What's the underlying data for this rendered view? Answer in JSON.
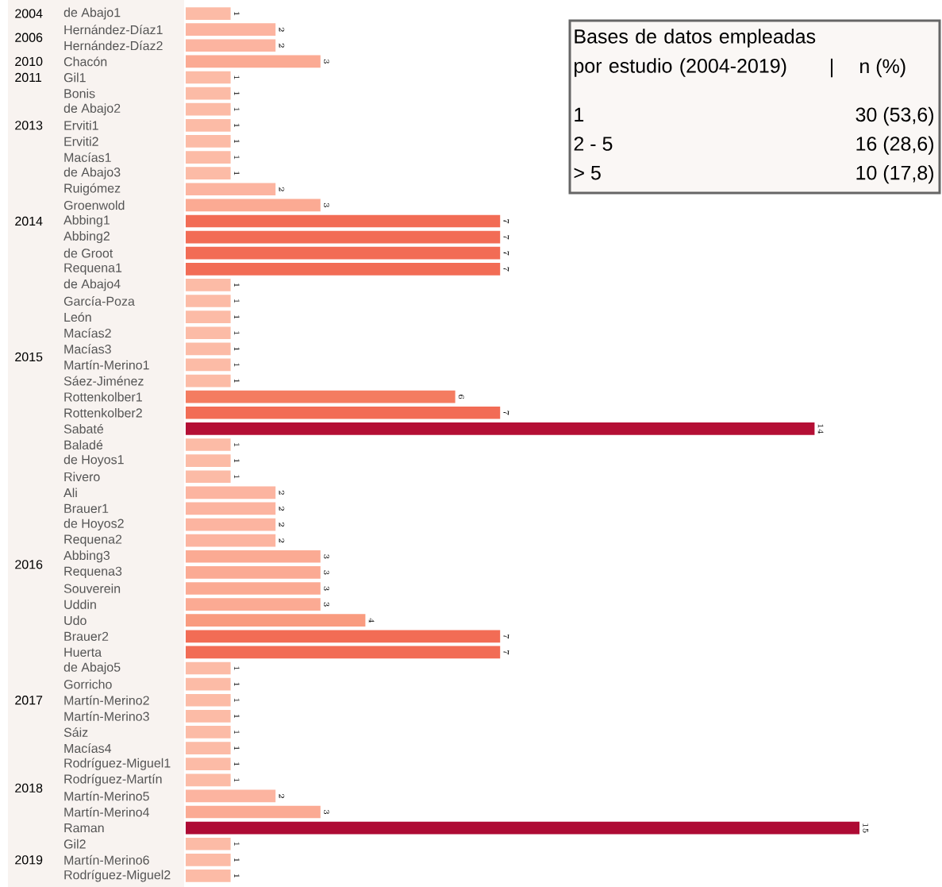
{
  "chart_data": {
    "type": "bar",
    "orientation": "horizontal",
    "data_labels": true,
    "categories": [
      "de Abajo1",
      "Hernández-Díaz1",
      "Hernández-Díaz2",
      "Chacón",
      "Gil1",
      "Bonis",
      "de Abajo2",
      "Erviti1",
      "Erviti2",
      "Macías1",
      "de Abajo3",
      "Ruigómez",
      "Groenwold",
      "Abbing1",
      "Abbing2",
      "de Groot",
      "Requena1",
      "de Abajo4",
      "García-Poza",
      "León",
      "Macías2",
      "Macías3",
      "Martín-Merino1",
      "Sáez-Jiménez",
      "Rottenkolber1",
      "Rottenkolber2",
      "Sabaté",
      "Baladé",
      "de Hoyos1",
      "Rivero",
      "Ali",
      "Brauer1",
      "de Hoyos2",
      "Requena2",
      "Abbing3",
      "Requena3",
      "Souverein",
      "Uddin",
      "Udo",
      "Brauer2",
      "Huerta",
      "de Abajo5",
      "Gorricho",
      "Martín-Merino2",
      "Martín-Merino3",
      "Sáiz",
      "Macías4",
      "Rodríguez-Miguel1",
      "Rodríguez-Martín",
      "Martín-Merino5",
      "Martín-Merino4",
      "Raman",
      "Gil2",
      "Martín-Merino6",
      "Rodríguez-Miguel2"
    ],
    "values": [
      1,
      2,
      2,
      3,
      1,
      1,
      1,
      1,
      1,
      1,
      1,
      2,
      3,
      7,
      7,
      7,
      7,
      1,
      1,
      1,
      1,
      1,
      1,
      1,
      6,
      7,
      14,
      1,
      1,
      1,
      2,
      2,
      2,
      2,
      3,
      3,
      3,
      3,
      4,
      7,
      7,
      1,
      1,
      1,
      1,
      1,
      1,
      1,
      1,
      2,
      3,
      15,
      1,
      1,
      1
    ],
    "colors": [
      "#fcbba6",
      "#fcb4a0",
      "#fcb4a0",
      "#fbaa93",
      "#fcbba6",
      "#fcbba6",
      "#fcbba6",
      "#fcbba6",
      "#fcbba6",
      "#fcbba6",
      "#fcbba6",
      "#fcb4a0",
      "#fbaa93",
      "#f26c55",
      "#f26c55",
      "#f26c55",
      "#f26c55",
      "#fcbba6",
      "#fcbba6",
      "#fcbba6",
      "#fcbba6",
      "#fcbba6",
      "#fcbba6",
      "#fcbba6",
      "#f47c60",
      "#f26c55",
      "#b40f35",
      "#fcbba6",
      "#fcbba6",
      "#fcbba6",
      "#fcb4a0",
      "#fcb4a0",
      "#fcb4a0",
      "#fcb4a0",
      "#fbaa93",
      "#fbaa93",
      "#fbaa93",
      "#fbaa93",
      "#f99b7f",
      "#f26c55",
      "#f26c55",
      "#fcbba6",
      "#fcbba6",
      "#fcbba6",
      "#fcbba6",
      "#fcbba6",
      "#fcbba6",
      "#fcbba6",
      "#fcbba6",
      "#fcb4a0",
      "#fbaa93",
      "#ae0a34",
      "#fcbba6",
      "#fcbba6",
      "#fcbba6"
    ],
    "annotations": [
      "2004",
      "2006",
      "2010",
      "2011",
      "2013",
      "2014",
      "2015",
      "2016",
      "2017",
      "2018",
      "2019",
      "Bases de datos empleadas por estudio (2004-2019)",
      "|",
      "n (%)",
      "1",
      "30 (53,6)",
      "2 - 5",
      "16 (28,6)",
      "> 5",
      "10 (17,8)"
    ]
  }
}
